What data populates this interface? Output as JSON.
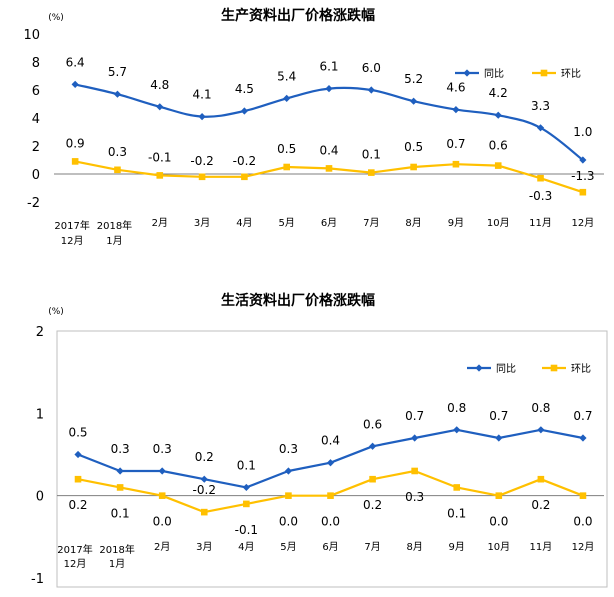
{
  "colors": {
    "yoy": "#1F5FBF",
    "mom": "#FFC000",
    "axis": "#7F7F7F",
    "frame": "#BFBFBF",
    "text": "#000000"
  },
  "chart_data": [
    {
      "type": "line",
      "title": "生产资料出厂价格涨跌幅",
      "unit": "(%)",
      "categories": [
        "2017年\n12月",
        "2018年\n1月",
        "2月",
        "3月",
        "4月",
        "5月",
        "6月",
        "7月",
        "8月",
        "9月",
        "10月",
        "11月",
        "12月"
      ],
      "ylim": [
        -2,
        10
      ],
      "yticks": [
        "10",
        "8",
        "6",
        "4",
        "2",
        "0",
        "-2"
      ],
      "legend_position": "top-right",
      "series": [
        {
          "name": "同比",
          "values": [
            6.4,
            5.7,
            4.8,
            4.1,
            4.5,
            5.4,
            6.1,
            6.0,
            5.2,
            4.6,
            4.2,
            3.3,
            1.0
          ],
          "labels": [
            "6.4",
            "5.7",
            "4.8",
            "4.1",
            "4.5",
            "5.4",
            "6.1",
            "6.0",
            "5.2",
            "4.6",
            "4.2",
            "3.3",
            "1.0"
          ],
          "marker": "diamond",
          "smooth": true
        },
        {
          "name": "环比",
          "values": [
            0.9,
            0.3,
            -0.1,
            -0.2,
            -0.2,
            0.5,
            0.4,
            0.1,
            0.5,
            0.7,
            0.6,
            -0.3,
            -1.3
          ],
          "labels": [
            "0.9",
            "0.3",
            "-0.1",
            "-0.2",
            "-0.2",
            "0.5",
            "0.4",
            "0.1",
            "0.5",
            "0.7",
            "0.6",
            "-0.3",
            "-1.3"
          ],
          "marker": "square",
          "smooth": false
        }
      ]
    },
    {
      "type": "line",
      "title": "生活资料出厂价格涨跌幅",
      "unit": "(%)",
      "categories": [
        "2017年\n12月",
        "2018年\n1月",
        "2月",
        "3月",
        "4月",
        "5月",
        "6月",
        "7月",
        "8月",
        "9月",
        "10月",
        "11月",
        "12月"
      ],
      "ylim": [
        -1,
        2
      ],
      "yticks": [
        "2",
        "1",
        "0",
        "-1"
      ],
      "legend_position": "top-right",
      "series": [
        {
          "name": "同比",
          "values": [
            0.5,
            0.3,
            0.3,
            0.2,
            0.1,
            0.3,
            0.4,
            0.6,
            0.7,
            0.8,
            0.7,
            0.8,
            0.7
          ],
          "labels": [
            "0.5",
            "0.3",
            "0.3",
            "0.2",
            "0.1",
            "0.3",
            "0.4",
            "0.6",
            "0.7",
            "0.8",
            "0.7",
            "0.8",
            "0.7"
          ],
          "marker": "diamond",
          "smooth": false
        },
        {
          "name": "环比",
          "values": [
            0.2,
            0.1,
            0.0,
            -0.2,
            -0.1,
            0.0,
            0.0,
            0.2,
            0.3,
            0.1,
            0.0,
            0.2,
            0.0
          ],
          "labels": [
            "0.2",
            "0.1",
            "0.0",
            "-0.2",
            "-0.1",
            "0.0",
            "0.0",
            "0.2",
            "0.3",
            "0.1",
            "0.0",
            "0.2",
            "0.0"
          ],
          "marker": "square",
          "smooth": false
        }
      ]
    }
  ]
}
